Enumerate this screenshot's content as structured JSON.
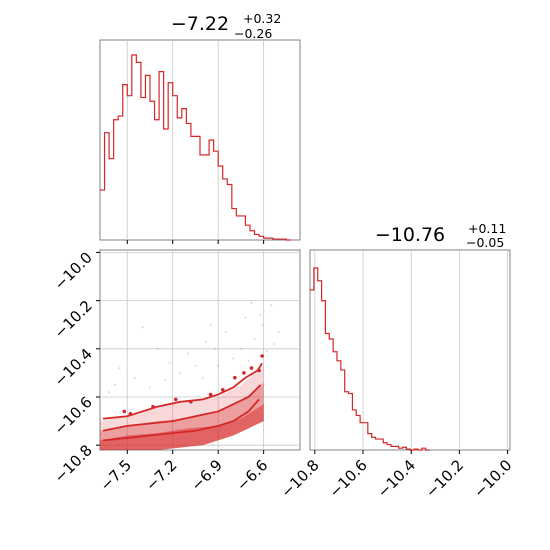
{
  "chart_data": [
    {
      "type": "histogram",
      "panel": "marginal-x",
      "title": {
        "median": "−7.22",
        "upper": "+0.32",
        "lower": "−0.26"
      },
      "xlim": [
        -7.68,
        -6.36
      ],
      "grid": true,
      "color": "#d62728",
      "bins": [
        {
          "x": -7.68,
          "h": 0.27
        },
        {
          "x": -7.65,
          "h": 0.58
        },
        {
          "x": -7.62,
          "h": 0.44
        },
        {
          "x": -7.59,
          "h": 0.65
        },
        {
          "x": -7.56,
          "h": 0.67
        },
        {
          "x": -7.53,
          "h": 0.84
        },
        {
          "x": -7.5,
          "h": 0.78
        },
        {
          "x": -7.47,
          "h": 1.0
        },
        {
          "x": -7.44,
          "h": 0.96
        },
        {
          "x": -7.41,
          "h": 0.77
        },
        {
          "x": -7.38,
          "h": 0.89
        },
        {
          "x": -7.35,
          "h": 0.75
        },
        {
          "x": -7.32,
          "h": 0.65
        },
        {
          "x": -7.29,
          "h": 0.91
        },
        {
          "x": -7.26,
          "h": 0.6
        },
        {
          "x": -7.23,
          "h": 0.85
        },
        {
          "x": -7.2,
          "h": 0.78
        },
        {
          "x": -7.17,
          "h": 0.66
        },
        {
          "x": -7.14,
          "h": 0.71
        },
        {
          "x": -7.11,
          "h": 0.63
        },
        {
          "x": -7.08,
          "h": 0.56
        },
        {
          "x": -7.05,
          "h": 0.56
        },
        {
          "x": -7.02,
          "h": 0.46
        },
        {
          "x": -6.99,
          "h": 0.46
        },
        {
          "x": -6.96,
          "h": 0.54
        },
        {
          "x": -6.93,
          "h": 0.48
        },
        {
          "x": -6.9,
          "h": 0.4
        },
        {
          "x": -6.87,
          "h": 0.33
        },
        {
          "x": -6.84,
          "h": 0.3
        },
        {
          "x": -6.81,
          "h": 0.17
        },
        {
          "x": -6.78,
          "h": 0.13
        },
        {
          "x": -6.75,
          "h": 0.13
        },
        {
          "x": -6.72,
          "h": 0.08
        },
        {
          "x": -6.69,
          "h": 0.05
        },
        {
          "x": -6.66,
          "h": 0.03
        },
        {
          "x": -6.63,
          "h": 0.02
        },
        {
          "x": -6.6,
          "h": 0.01
        },
        {
          "x": -6.57,
          "h": 0.01
        },
        {
          "x": -6.54,
          "h": 0.005
        },
        {
          "x": -6.51,
          "h": 0.005
        },
        {
          "x": -6.48,
          "h": 0.005
        },
        {
          "x": -6.45,
          "h": 0.0
        }
      ],
      "bin_width": 0.03,
      "gridlines_x": [
        -7.5,
        -7.2,
        -6.9,
        -6.6
      ]
    },
    {
      "type": "scatter",
      "panel": "joint",
      "xlim": [
        -7.68,
        -6.36
      ],
      "ylim": [
        -10.82,
        -9.99
      ],
      "xticks": [
        -7.5,
        -7.2,
        -6.9,
        -6.6
      ],
      "xtick_labels": [
        "−7.5",
        "−7.2",
        "−6.9",
        "−6.6"
      ],
      "yticks": [
        -10.0,
        -10.2,
        -10.4,
        -10.6,
        -10.8
      ],
      "ytick_labels": [
        "−10.0",
        "−10.2",
        "−10.4",
        "−10.6",
        "−10.8"
      ],
      "grid": true,
      "color": "#d62728",
      "density_bands": [
        {
          "level": "outer",
          "opacity": 0.18,
          "upper": [
            [
              -7.68,
              -10.7
            ],
            [
              -7.5,
              -10.68
            ],
            [
              -7.3,
              -10.64
            ],
            [
              -7.1,
              -10.62
            ],
            [
              -6.9,
              -10.6
            ],
            [
              -6.75,
              -10.55
            ],
            [
              -6.6,
              -10.47
            ]
          ]
        },
        {
          "level": "middle",
          "opacity": 0.32,
          "upper": [
            [
              -7.68,
              -10.74
            ],
            [
              -7.5,
              -10.72
            ],
            [
              -7.3,
              -10.7
            ],
            [
              -7.1,
              -10.69
            ],
            [
              -6.9,
              -10.66
            ],
            [
              -6.75,
              -10.62
            ],
            [
              -6.6,
              -10.54
            ]
          ]
        },
        {
          "level": "inner",
          "opacity": 0.5,
          "upper": [
            [
              -7.68,
              -10.78
            ],
            [
              -7.5,
              -10.76
            ],
            [
              -7.3,
              -10.75
            ],
            [
              -7.1,
              -10.73
            ],
            [
              -6.9,
              -10.72
            ],
            [
              -6.75,
              -10.69
            ],
            [
              -6.6,
              -10.63
            ]
          ]
        }
      ],
      "lower_edge": [
        [
          -7.68,
          -10.82
        ],
        [
          -7.3,
          -10.82
        ],
        [
          -7.0,
          -10.8
        ],
        [
          -6.8,
          -10.76
        ],
        [
          -6.6,
          -10.7
        ]
      ],
      "contours": [
        [
          [
            -7.66,
            -10.69
          ],
          [
            -7.5,
            -10.68
          ],
          [
            -7.4,
            -10.66
          ],
          [
            -7.3,
            -10.64
          ],
          [
            -7.15,
            -10.62
          ],
          [
            -7.0,
            -10.61
          ],
          [
            -6.9,
            -10.59
          ],
          [
            -6.8,
            -10.56
          ],
          [
            -6.72,
            -10.52
          ],
          [
            -6.64,
            -10.49
          ],
          [
            -6.61,
            -10.46
          ]
        ],
        [
          [
            -7.66,
            -10.74
          ],
          [
            -7.5,
            -10.72
          ],
          [
            -7.35,
            -10.71
          ],
          [
            -7.2,
            -10.7
          ],
          [
            -7.05,
            -10.68
          ],
          [
            -6.9,
            -10.66
          ],
          [
            -6.8,
            -10.63
          ],
          [
            -6.7,
            -10.6
          ],
          [
            -6.62,
            -10.55
          ]
        ],
        [
          [
            -7.66,
            -10.78
          ],
          [
            -7.5,
            -10.77
          ],
          [
            -7.35,
            -10.76
          ],
          [
            -7.2,
            -10.75
          ],
          [
            -7.05,
            -10.74
          ],
          [
            -6.9,
            -10.72
          ],
          [
            -6.8,
            -10.7
          ],
          [
            -6.7,
            -10.66
          ],
          [
            -6.63,
            -10.61
          ]
        ]
      ],
      "points": [
        [
          -7.52,
          -10.66
        ],
        [
          -7.48,
          -10.67
        ],
        [
          -7.33,
          -10.64
        ],
        [
          -7.08,
          -10.62
        ],
        [
          -6.87,
          -10.57
        ],
        [
          -6.79,
          -10.52
        ],
        [
          -6.73,
          -10.5
        ],
        [
          -6.63,
          -10.49
        ],
        [
          -6.61,
          -10.43
        ],
        [
          -7.18,
          -10.61
        ],
        [
          -6.95,
          -10.59
        ],
        [
          -6.68,
          -10.48
        ]
      ],
      "faint_points": [
        [
          -7.4,
          -10.31
        ],
        [
          -7.1,
          -10.42
        ],
        [
          -6.98,
          -10.37
        ],
        [
          -6.85,
          -10.33
        ],
        [
          -6.68,
          -10.21
        ],
        [
          -6.61,
          -10.3
        ],
        [
          -6.55,
          -10.22
        ],
        [
          -7.55,
          -10.48
        ],
        [
          -7.22,
          -10.46
        ],
        [
          -7.0,
          -10.52
        ],
        [
          -6.92,
          -10.4
        ],
        [
          -6.72,
          -10.27
        ],
        [
          -6.8,
          -10.44
        ],
        [
          -7.3,
          -10.4
        ],
        [
          -6.5,
          -10.33
        ],
        [
          -7.58,
          -10.55
        ],
        [
          -7.45,
          -10.52
        ],
        [
          -7.15,
          -10.5
        ],
        [
          -6.66,
          -10.36
        ],
        [
          -6.75,
          -10.4
        ],
        [
          -7.05,
          -10.47
        ],
        [
          -6.9,
          -10.47
        ],
        [
          -7.35,
          -10.56
        ],
        [
          -6.58,
          -10.41
        ],
        [
          -6.62,
          -10.26
        ],
        [
          -7.62,
          -10.58
        ],
        [
          -7.25,
          -10.53
        ],
        [
          -6.95,
          -10.3
        ],
        [
          -6.7,
          -10.45
        ],
        [
          -6.53,
          -10.38
        ]
      ]
    },
    {
      "type": "histogram",
      "panel": "marginal-y",
      "title": {
        "median": "−10.76",
        "upper": "+0.11",
        "lower": "−0.05"
      },
      "xlim": [
        -10.82,
        -9.99
      ],
      "xticks": [
        -10.8,
        -10.6,
        -10.4,
        -10.2,
        -10.0
      ],
      "xtick_labels": [
        "−10.8",
        "−10.6",
        "−10.4",
        "−10.2",
        "−10.0"
      ],
      "grid": true,
      "color": "#d62728",
      "bin_width": 0.016,
      "bins": [
        {
          "x": -10.82,
          "h": 0.88
        },
        {
          "x": -10.804,
          "h": 1.0
        },
        {
          "x": -10.788,
          "h": 0.93
        },
        {
          "x": -10.772,
          "h": 0.82
        },
        {
          "x": -10.756,
          "h": 0.64
        },
        {
          "x": -10.74,
          "h": 0.61
        },
        {
          "x": -10.724,
          "h": 0.54
        },
        {
          "x": -10.708,
          "h": 0.49
        },
        {
          "x": -10.692,
          "h": 0.44
        },
        {
          "x": -10.676,
          "h": 0.32
        },
        {
          "x": -10.66,
          "h": 0.31
        },
        {
          "x": -10.644,
          "h": 0.22
        },
        {
          "x": -10.628,
          "h": 0.19
        },
        {
          "x": -10.612,
          "h": 0.15
        },
        {
          "x": -10.596,
          "h": 0.15
        },
        {
          "x": -10.58,
          "h": 0.09
        },
        {
          "x": -10.564,
          "h": 0.07
        },
        {
          "x": -10.548,
          "h": 0.06
        },
        {
          "x": -10.532,
          "h": 0.06
        },
        {
          "x": -10.516,
          "h": 0.04
        },
        {
          "x": -10.5,
          "h": 0.03
        },
        {
          "x": -10.484,
          "h": 0.02
        },
        {
          "x": -10.468,
          "h": 0.02
        },
        {
          "x": -10.452,
          "h": 0.01
        },
        {
          "x": -10.436,
          "h": 0.015
        },
        {
          "x": -10.42,
          "h": 0.005
        },
        {
          "x": -10.404,
          "h": 0.0
        },
        {
          "x": -10.388,
          "h": 0.005
        },
        {
          "x": -10.372,
          "h": 0.0
        },
        {
          "x": -10.356,
          "h": 0.01
        },
        {
          "x": -10.34,
          "h": 0.0
        }
      ]
    }
  ]
}
